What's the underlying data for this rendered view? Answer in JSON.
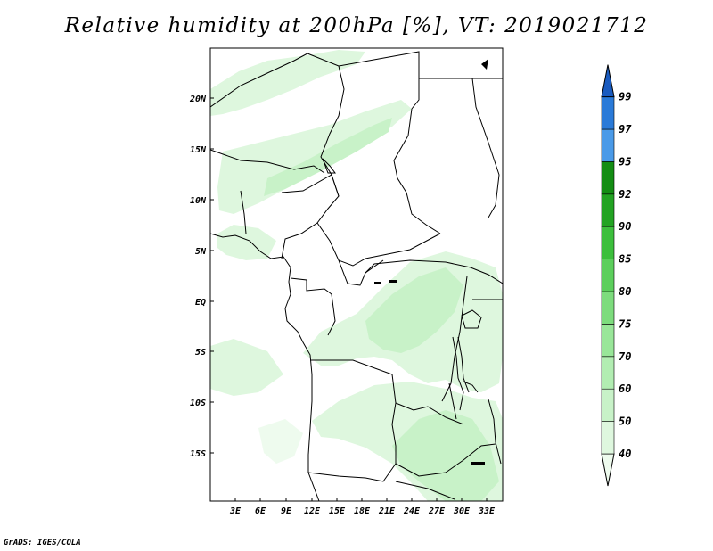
{
  "title": "Relative humidity at 200hPa [%], VT: 2019021712",
  "credit": "GrADS: IGES/COLA",
  "map": {
    "lon_range": [
      0,
      34
    ],
    "lat_range": [
      -20,
      25
    ],
    "lat_labels": [
      "20N",
      "15N",
      "10N",
      "5N",
      "EQ",
      "5S",
      "10S",
      "15S"
    ],
    "lat_values": [
      20,
      15,
      10,
      5,
      0,
      -5,
      -10,
      -15
    ],
    "lon_labels": [
      "3E",
      "6E",
      "9E",
      "12E",
      "15E",
      "18E",
      "21E",
      "24E",
      "27E",
      "30E",
      "33E"
    ],
    "lon_values": [
      3,
      6,
      9,
      12,
      15,
      18,
      21,
      24,
      27,
      30,
      33
    ]
  },
  "colorbar": {
    "levels": [
      "40",
      "50",
      "60",
      "70",
      "75",
      "80",
      "85",
      "90",
      "92",
      "95",
      "97",
      "99"
    ],
    "colors": [
      "#eefbee",
      "#def7de",
      "#c8f2c8",
      "#b2edb2",
      "#99e699",
      "#7ddc7d",
      "#5ccf5c",
      "#3cbf3c",
      "#22a322",
      "#138d13",
      "#4a9ae8",
      "#2a7ad8",
      "#1a5bbf"
    ]
  }
}
